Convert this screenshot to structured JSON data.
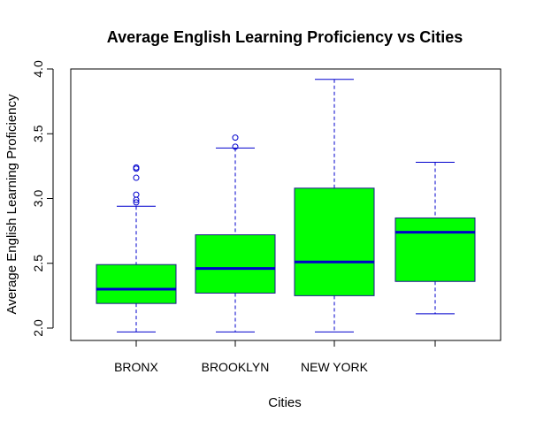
{
  "chart_data": {
    "type": "boxplot",
    "title": "Average English Learning Proficiency vs Cities",
    "xlabel": "Cities",
    "ylabel": "Average English Learning Proficiency",
    "ylim": [
      1.9,
      4.0
    ],
    "yticks": [
      "2.0",
      "2.5",
      "3.0",
      "3.5",
      "4.0"
    ],
    "grid": false,
    "legend": "none",
    "box_fill": "#00ff00",
    "median_color": "#0000cd",
    "whisker_color": "#0000cd",
    "categories": [
      "BRONX",
      "BROOKLYN",
      "NEW YORK",
      ""
    ],
    "boxes": [
      {
        "category": "BRONX",
        "min": 1.97,
        "q1": 2.19,
        "median": 2.3,
        "q3": 2.49,
        "max": 2.94,
        "outliers": [
          2.97,
          2.99,
          3.03,
          3.16,
          3.23,
          3.24
        ]
      },
      {
        "category": "BROOKLYN",
        "min": 1.97,
        "q1": 2.27,
        "median": 2.46,
        "q3": 2.72,
        "max": 3.39,
        "outliers": [
          3.4,
          3.47
        ]
      },
      {
        "category": "NEW YORK",
        "min": 1.97,
        "q1": 2.25,
        "median": 2.51,
        "q3": 3.08,
        "max": 3.92,
        "outliers": []
      },
      {
        "category": "",
        "min": 2.11,
        "q1": 2.36,
        "median": 2.74,
        "q3": 2.85,
        "max": 3.28,
        "outliers": []
      }
    ]
  }
}
